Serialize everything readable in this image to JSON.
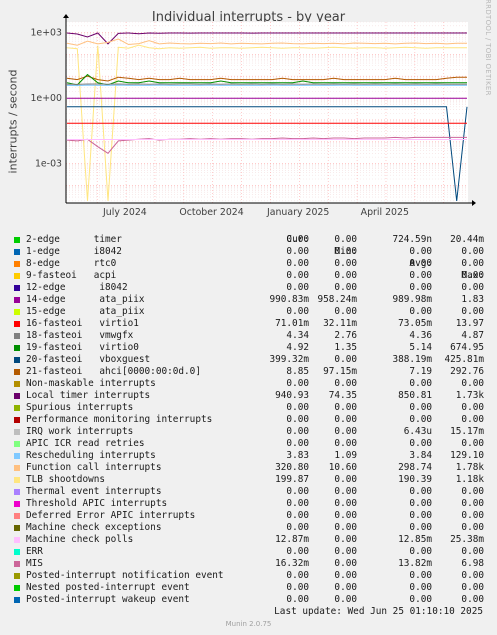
{
  "title": "Individual interrupts - by year",
  "side_brand": "RRDTOOL / TOBI OETIKER",
  "last_update": "Last update: Wed Jun 25 01:10:10 2025",
  "version": "Munin 2.0.75",
  "legend_header": {
    "cur": "Cur:",
    "min": "Min:",
    "avg": "Avg:",
    "max": "Max:"
  },
  "legend": [
    {
      "name": "2-edge      timer",
      "color": "#00cc00",
      "cur": "0.00",
      "min": "0.00",
      "avg": "724.59n",
      "max": "20.44m"
    },
    {
      "name": "1-edge      i8042",
      "color": "#0066b3",
      "cur": "0.00",
      "min": "0.00",
      "avg": "0.00",
      "max": "0.00"
    },
    {
      "name": "8-edge      rtc0",
      "color": "#ff8000",
      "cur": "0.00",
      "min": "0.00",
      "avg": "0.00",
      "max": "0.00"
    },
    {
      "name": "9-fasteoi   acpi",
      "color": "#ffcc00",
      "cur": "0.00",
      "min": "0.00",
      "avg": "0.00",
      "max": "0.00"
    },
    {
      "name": "12-edge      i8042",
      "color": "#330099",
      "cur": "0.00",
      "min": "0.00",
      "avg": "0.00",
      "max": "0.00"
    },
    {
      "name": "14-edge      ata_piix",
      "color": "#990099",
      "cur": "990.83m",
      "min": "958.24m",
      "avg": "989.98m",
      "max": "1.83"
    },
    {
      "name": "15-edge      ata_piix",
      "color": "#ccff00",
      "cur": "0.00",
      "min": "0.00",
      "avg": "0.00",
      "max": "0.00"
    },
    {
      "name": "16-fasteoi   virtio1",
      "color": "#ff0000",
      "cur": "71.01m",
      "min": "32.11m",
      "avg": "73.05m",
      "max": "13.97"
    },
    {
      "name": "18-fasteoi   vmwgfx",
      "color": "#808080",
      "cur": "4.34",
      "min": "2.76",
      "avg": "4.36",
      "max": "4.87"
    },
    {
      "name": "19-fasteoi   virtio0",
      "color": "#008f00",
      "cur": "4.92",
      "min": "1.35",
      "avg": "5.14",
      "max": "674.95"
    },
    {
      "name": "20-fasteoi   vboxguest",
      "color": "#00487d",
      "cur": "399.32m",
      "min": "0.00",
      "avg": "388.19m",
      "max": "425.81m"
    },
    {
      "name": "21-fasteoi   ahci[0000:00:0d.0]",
      "color": "#b35a00",
      "cur": "8.85",
      "min": "97.15m",
      "avg": "7.19",
      "max": "292.76"
    },
    {
      "name": "Non-maskable interrupts",
      "color": "#b38f00",
      "cur": "0.00",
      "min": "0.00",
      "avg": "0.00",
      "max": "0.00"
    },
    {
      "name": "Local timer interrupts",
      "color": "#6b006b",
      "cur": "940.93",
      "min": "74.35",
      "avg": "850.81",
      "max": "1.73k"
    },
    {
      "name": "Spurious interrupts",
      "color": "#8fb300",
      "cur": "0.00",
      "min": "0.00",
      "avg": "0.00",
      "max": "0.00"
    },
    {
      "name": "Performance monitoring interrupts",
      "color": "#b30000",
      "cur": "0.00",
      "min": "0.00",
      "avg": "0.00",
      "max": "0.00"
    },
    {
      "name": "IRQ work interrupts",
      "color": "#bebebe",
      "cur": "0.00",
      "min": "0.00",
      "avg": "6.43u",
      "max": "15.17m"
    },
    {
      "name": "APIC ICR read retries",
      "color": "#80ff80",
      "cur": "0.00",
      "min": "0.00",
      "avg": "0.00",
      "max": "0.00"
    },
    {
      "name": "Rescheduling interrupts",
      "color": "#80c9ff",
      "cur": "3.83",
      "min": "1.09",
      "avg": "3.84",
      "max": "129.10"
    },
    {
      "name": "Function call interrupts",
      "color": "#ffc080",
      "cur": "320.80",
      "min": "10.60",
      "avg": "298.74",
      "max": "1.78k"
    },
    {
      "name": "TLB shootdowns",
      "color": "#ffe680",
      "cur": "199.87",
      "min": "0.00",
      "avg": "190.39",
      "max": "1.18k"
    },
    {
      "name": "Thermal event interrupts",
      "color": "#aa80ff",
      "cur": "0.00",
      "min": "0.00",
      "avg": "0.00",
      "max": "0.00"
    },
    {
      "name": "Threshold APIC interrupts",
      "color": "#ee00cc",
      "cur": "0.00",
      "min": "0.00",
      "avg": "0.00",
      "max": "0.00"
    },
    {
      "name": "Deferred Error APIC interrupts",
      "color": "#ff8080",
      "cur": "0.00",
      "min": "0.00",
      "avg": "0.00",
      "max": "0.00"
    },
    {
      "name": "Machine check exceptions",
      "color": "#666600",
      "cur": "0.00",
      "min": "0.00",
      "avg": "0.00",
      "max": "0.00"
    },
    {
      "name": "Machine check polls",
      "color": "#ffbfff",
      "cur": "12.87m",
      "min": "0.00",
      "avg": "12.85m",
      "max": "25.38m"
    },
    {
      "name": "ERR",
      "color": "#00ffcc",
      "cur": "0.00",
      "min": "0.00",
      "avg": "0.00",
      "max": "0.00"
    },
    {
      "name": "MIS",
      "color": "#cc6699",
      "cur": "16.32m",
      "min": "0.00",
      "avg": "13.82m",
      "max": "6.98"
    },
    {
      "name": "Posted-interrupt notification event",
      "color": "#999900",
      "cur": "0.00",
      "min": "0.00",
      "avg": "0.00",
      "max": "0.00"
    },
    {
      "name": "Nested posted-interrupt event",
      "color": "#00cc00",
      "cur": "0.00",
      "min": "0.00",
      "avg": "0.00",
      "max": "0.00"
    },
    {
      "name": "Posted-interrupt wakeup event",
      "color": "#0066b3",
      "cur": "0.00",
      "min": "0.00",
      "avg": "0.00",
      "max": "0.00"
    }
  ],
  "chart_data": {
    "type": "line",
    "title": "Individual interrupts - by year",
    "ylabel": "interrupts / second",
    "y_scale": "log",
    "ylim": [
      1.6e-05,
      3000
    ],
    "y_ticks": [
      {
        "label": "1e-03",
        "value": 0.001
      },
      {
        "label": "1e+00",
        "value": 1
      },
      {
        "label": "1e+03",
        "value": 1000
      }
    ],
    "x_ticks": [
      {
        "label": "July 2024",
        "value": 2024.5
      },
      {
        "label": "October 2024",
        "value": 2024.75
      },
      {
        "label": "January 2025",
        "value": 2025.0
      },
      {
        "label": "April 2025",
        "value": 2025.25
      }
    ],
    "x_range": [
      2024.33,
      2025.49
    ],
    "grid": true,
    "series": [
      {
        "name": "Local timer interrupts",
        "color": "#6b006b",
        "values": [
          940,
          850,
          620,
          940,
          300,
          900,
          940,
          880,
          940,
          910,
          940,
          940,
          930,
          940,
          940,
          940,
          940,
          940,
          930,
          940,
          940,
          940,
          940,
          940,
          940,
          940,
          940,
          940,
          940,
          940,
          940,
          940,
          940,
          940,
          940,
          940,
          940,
          940,
          940,
          940
        ]
      },
      {
        "name": "Function call interrupts",
        "color": "#ffc080",
        "values": [
          320,
          260,
          400,
          300,
          350,
          500,
          280,
          310,
          420,
          300,
          330,
          310,
          300,
          320,
          310,
          330,
          300,
          320,
          310,
          300,
          320,
          330,
          310,
          300,
          320,
          310,
          320,
          300,
          330,
          320,
          310,
          320,
          300,
          320,
          330,
          310,
          320,
          300,
          320,
          320
        ]
      },
      {
        "name": "TLB shootdowns",
        "color": "#ffe680",
        "values": [
          200,
          180,
          2e-05,
          250,
          2e-05,
          210,
          190,
          260,
          200,
          180,
          200,
          190,
          200,
          210,
          190,
          200,
          200,
          190,
          200,
          210,
          200,
          190,
          200,
          200,
          190,
          200,
          210,
          200,
          190,
          200,
          200,
          190,
          200,
          210,
          200,
          190,
          200,
          200,
          200,
          200
        ]
      },
      {
        "name": "21-fasteoi   ahci[0000:00:0d.0]",
        "color": "#b35a00",
        "values": [
          8,
          7,
          10,
          7,
          6,
          9,
          8,
          7,
          8,
          7,
          7,
          8,
          7,
          7,
          7,
          8,
          7,
          7,
          7,
          7,
          7,
          8,
          7,
          7,
          7,
          7,
          8,
          7,
          7,
          7,
          7,
          7,
          8,
          7,
          7,
          7,
          7,
          8,
          9,
          9
        ]
      },
      {
        "name": "19-fasteoi   virtio0",
        "color": "#008f00",
        "values": [
          5,
          4,
          12,
          5,
          4,
          6,
          5,
          5,
          6,
          5,
          5,
          5,
          5,
          5,
          5,
          6,
          5,
          5,
          5,
          5,
          5,
          5,
          5,
          6,
          5,
          5,
          5,
          5,
          5,
          5,
          5,
          5,
          5,
          5,
          5,
          5,
          5,
          5,
          5,
          5
        ]
      },
      {
        "name": "18-fasteoi   vmwgfx",
        "color": "#808080",
        "values": [
          4.3,
          4.2,
          4.4,
          4.4,
          4.3,
          4.4,
          4.3,
          4.4,
          4.3,
          4.4,
          4.3,
          4.4,
          4.4,
          4.3,
          4.4,
          4.3,
          4.4,
          4.3,
          4.4,
          4.3,
          4.4,
          4.3,
          4.4,
          4.3,
          4.4,
          4.3,
          4.4,
          4.3,
          4.4,
          4.3,
          4.4,
          4.3,
          4.4,
          4.3,
          4.4,
          4.3,
          4.4,
          4.3,
          4.3,
          4.3
        ]
      },
      {
        "name": "Rescheduling interrupts",
        "color": "#80c9ff",
        "values": [
          3.8,
          3.7,
          3.9,
          3.8,
          3.8,
          3.9,
          3.8,
          3.8,
          3.8,
          3.9,
          3.8,
          3.8,
          3.8,
          3.8,
          3.9,
          3.8,
          3.8,
          3.8,
          3.8,
          3.8,
          3.9,
          3.8,
          3.8,
          3.8,
          3.8,
          3.8,
          3.8,
          3.9,
          3.8,
          3.8,
          3.8,
          3.8,
          3.8,
          3.8,
          3.8,
          3.8,
          3.8,
          3.8,
          3.8,
          3.8
        ]
      },
      {
        "name": "14-edge      ata_piix",
        "color": "#990099",
        "values": [
          0.99,
          0.99,
          0.99,
          0.99,
          0.99,
          0.99,
          0.99,
          0.99,
          0.99,
          0.99,
          0.99,
          0.99,
          0.99,
          0.99,
          0.99,
          0.99,
          0.99,
          0.99,
          0.99,
          0.99,
          0.99,
          0.99,
          0.99,
          0.99,
          0.99,
          0.99,
          0.99,
          0.99,
          0.99,
          0.99,
          0.99,
          0.99,
          0.99,
          0.99,
          0.99,
          0.99,
          0.99,
          0.99,
          0.99,
          0.99
        ]
      },
      {
        "name": "20-fasteoi   vboxguest",
        "color": "#00487d",
        "values": [
          0.4,
          0.4,
          0.4,
          0.4,
          0.4,
          0.4,
          0.4,
          0.4,
          0.4,
          0.4,
          0.4,
          0.4,
          0.4,
          0.4,
          0.4,
          0.4,
          0.4,
          0.4,
          0.4,
          0.4,
          0.4,
          0.4,
          0.4,
          0.4,
          0.4,
          0.4,
          0.4,
          0.4,
          0.4,
          0.4,
          0.4,
          0.4,
          0.4,
          0.4,
          0.4,
          0.4,
          0.4,
          0.4,
          2e-05,
          0.4
        ]
      },
      {
        "name": "16-fasteoi   virtio1",
        "color": "#ff0000",
        "values": [
          0.07,
          0.07,
          0.07,
          0.07,
          0.07,
          0.07,
          0.07,
          0.07,
          0.07,
          0.07,
          0.07,
          0.07,
          0.07,
          0.07,
          0.07,
          0.07,
          0.07,
          0.07,
          0.07,
          0.07,
          0.07,
          0.07,
          0.07,
          0.07,
          0.07,
          0.07,
          0.07,
          0.07,
          0.07,
          0.07,
          0.07,
          0.07,
          0.07,
          0.07,
          0.07,
          0.07,
          0.07,
          0.07,
          0.07,
          0.07
        ]
      },
      {
        "name": "MIS",
        "color": "#cc6699",
        "values": [
          0.012,
          0.011,
          0.013,
          0.006,
          0.003,
          0.011,
          0.012,
          0.013,
          0.014,
          0.012,
          0.013,
          0.013,
          0.014,
          0.013,
          0.014,
          0.013,
          0.014,
          0.014,
          0.013,
          0.014,
          0.014,
          0.015,
          0.014,
          0.014,
          0.015,
          0.014,
          0.015,
          0.015,
          0.014,
          0.015,
          0.015,
          0.015,
          0.016,
          0.015,
          0.016,
          0.016,
          0.016,
          0.016,
          0.016,
          0.016
        ]
      },
      {
        "name": "Machine check polls",
        "color": "#ffbfff",
        "values": [
          0.0128,
          0.0128,
          0.0128,
          0.0128,
          0.0128,
          0.0128,
          0.0128,
          0.0128,
          0.0128,
          0.0128,
          0.0128,
          0.0128,
          0.0128,
          0.0128,
          0.0128,
          0.0128,
          0.0128,
          0.0128,
          0.0128,
          0.0128,
          0.0128,
          0.0128,
          0.0128,
          0.0128,
          0.0128,
          0.0128,
          0.0128,
          0.0128,
          0.0128,
          0.0128,
          0.0128,
          0.0128,
          0.0128,
          0.0128,
          0.0128,
          0.0128,
          0.0128,
          0.0128,
          0.0128,
          0.0128
        ]
      }
    ]
  }
}
